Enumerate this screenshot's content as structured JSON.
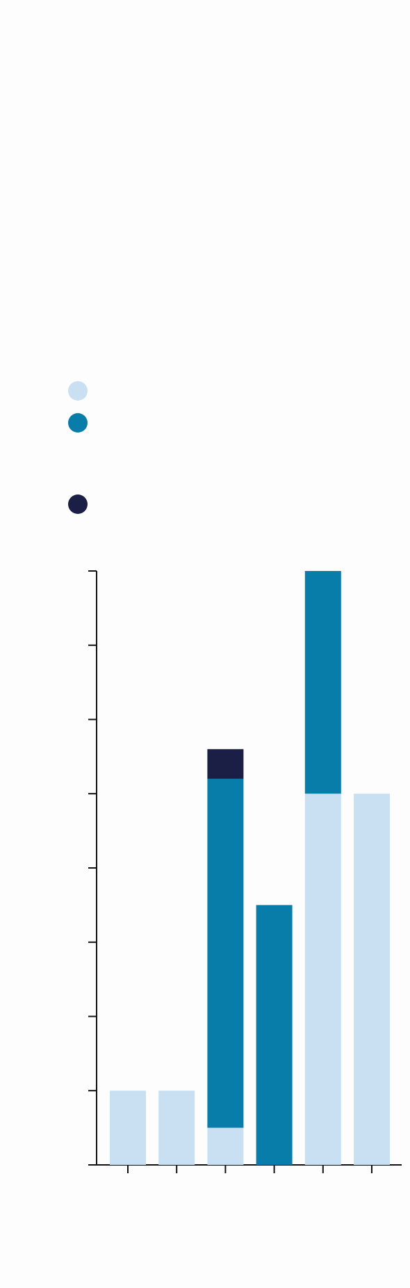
{
  "chart_data": {
    "type": "stacked_bar",
    "categories": [
      null,
      null,
      null,
      null,
      null,
      null
    ],
    "series": [
      {
        "color": "#c9e0f3",
        "values": [
          1,
          1,
          0.5,
          0,
          5,
          5
        ]
      },
      {
        "color": "#097daa",
        "values": [
          0,
          0,
          4.7,
          3.5,
          3,
          0
        ]
      },
      {
        "color": "#1b1e45",
        "values": [
          0,
          0,
          0.4,
          0,
          0,
          0
        ]
      }
    ],
    "ylim": [
      0,
      8
    ],
    "yticks": [
      0,
      1,
      2,
      3,
      4,
      5,
      6,
      7,
      8
    ],
    "grid": false
  }
}
